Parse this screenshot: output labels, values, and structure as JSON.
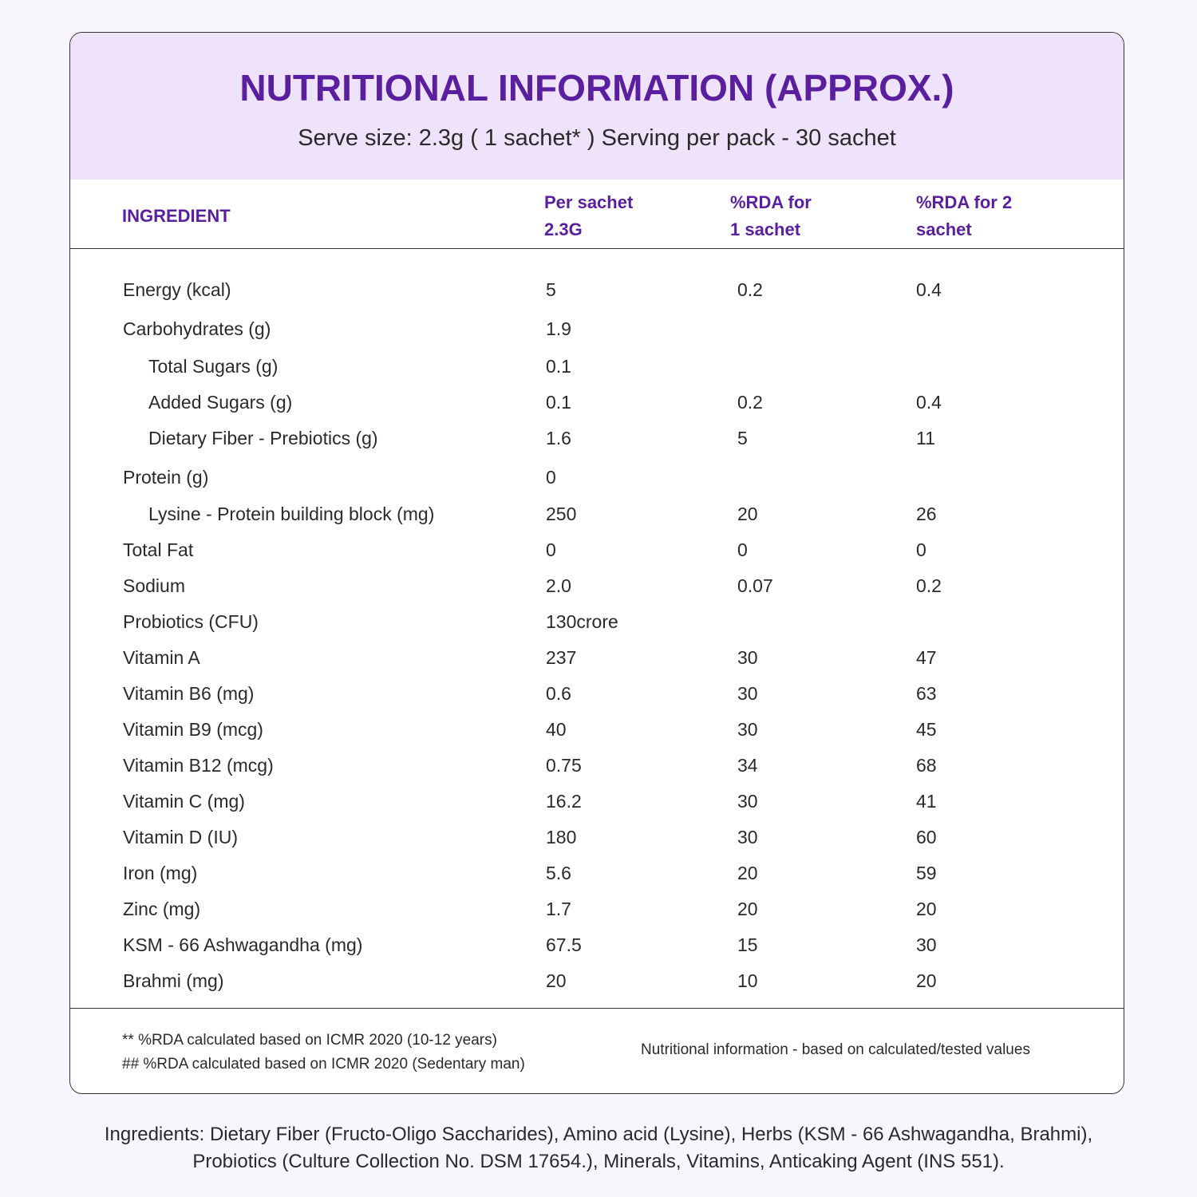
{
  "header": {
    "title": "NUTRITIONAL INFORMATION (APPROX.)",
    "subtitle": "Serve size: 2.3g ( 1 sachet* ) Serving per pack - 30 sachet"
  },
  "table": {
    "columns": [
      [
        "INGREDIENT"
      ],
      [
        "Per sachet",
        "2.3G"
      ],
      [
        "%RDA for",
        "1 sachet"
      ],
      [
        "%RDA for 2",
        "sachet"
      ]
    ],
    "rows": [
      {
        "name": "Energy (kcal)",
        "per_sachet": "5",
        "rda1": "0.2",
        "rda2": "0.4"
      },
      {
        "name": "Carbohydrates (g)",
        "per_sachet": "1.9"
      },
      {
        "name": "Total Sugars (g)",
        "per_sachet": "0.1",
        "indent": true
      },
      {
        "name": "Added Sugars (g)",
        "per_sachet": "0.1",
        "rda1": "0.2",
        "rda2": "0.4",
        "indent": true
      },
      {
        "name": "Dietary Fiber - Prebiotics (g)",
        "per_sachet": "1.6",
        "rda1": "5",
        "rda2": "11",
        "indent": true
      },
      {
        "name": "Protein (g)",
        "per_sachet": "0"
      },
      {
        "name": "Lysine - Protein building block (mg)",
        "per_sachet": "250",
        "rda1": "20",
        "rda2": "26",
        "indent": true
      },
      {
        "name": "Total Fat",
        "per_sachet": "0",
        "rda1": "0",
        "rda2": "0"
      },
      {
        "name": "Sodium",
        "per_sachet": "2.0",
        "rda1": "0.07",
        "rda2": "0.2"
      },
      {
        "name": "Probiotics (CFU)",
        "per_sachet": "130crore"
      },
      {
        "name": "Vitamin A",
        "per_sachet": "237",
        "rda1": "30",
        "rda2": "47"
      },
      {
        "name": "Vitamin B6 (mg)",
        "per_sachet": "0.6",
        "rda1": "30",
        "rda2": "63"
      },
      {
        "name": "Vitamin B9 (mcg)",
        "per_sachet": "40",
        "rda1": "30",
        "rda2": "45"
      },
      {
        "name": "Vitamin B12 (mcg)",
        "per_sachet": "0.75",
        "rda1": "34",
        "rda2": "68"
      },
      {
        "name": "Vitamin C (mg)",
        "per_sachet": "16.2",
        "rda1": "30",
        "rda2": "41"
      },
      {
        "name": "Vitamin D (IU)",
        "per_sachet": "180",
        "rda1": "30",
        "rda2": "60"
      },
      {
        "name": "Iron (mg)",
        "per_sachet": "5.6",
        "rda1": "20",
        "rda2": "59"
      },
      {
        "name": "Zinc (mg)",
        "per_sachet": "1.7",
        "rda1": "20",
        "rda2": "20"
      },
      {
        "name": "KSM - 66 Ashwagandha (mg)",
        "per_sachet": "67.5",
        "rda1": "15",
        "rda2": "30"
      },
      {
        "name": "Brahmi (mg)",
        "per_sachet": "20",
        "rda1": "10",
        "rda2": "20"
      }
    ]
  },
  "footnotes": [
    "** %RDA calculated based on ICMR 2020 (10-12 years)",
    "## %RDA calculated based on ICMR 2020 (Sedentary man)"
  ],
  "note": "Nutritional information - based on calculated/tested values",
  "ingredients": [
    "Ingredients: Dietary Fiber (Fructo-Oligo Saccharides), Amino acid (Lysine), Herbs (KSM - 66 Ashwagandha, Brahmi),",
    "Probiotics (Culture Collection No. DSM 17654.), Minerals, Vitamins, Anticaking Agent (INS 551)."
  ]
}
